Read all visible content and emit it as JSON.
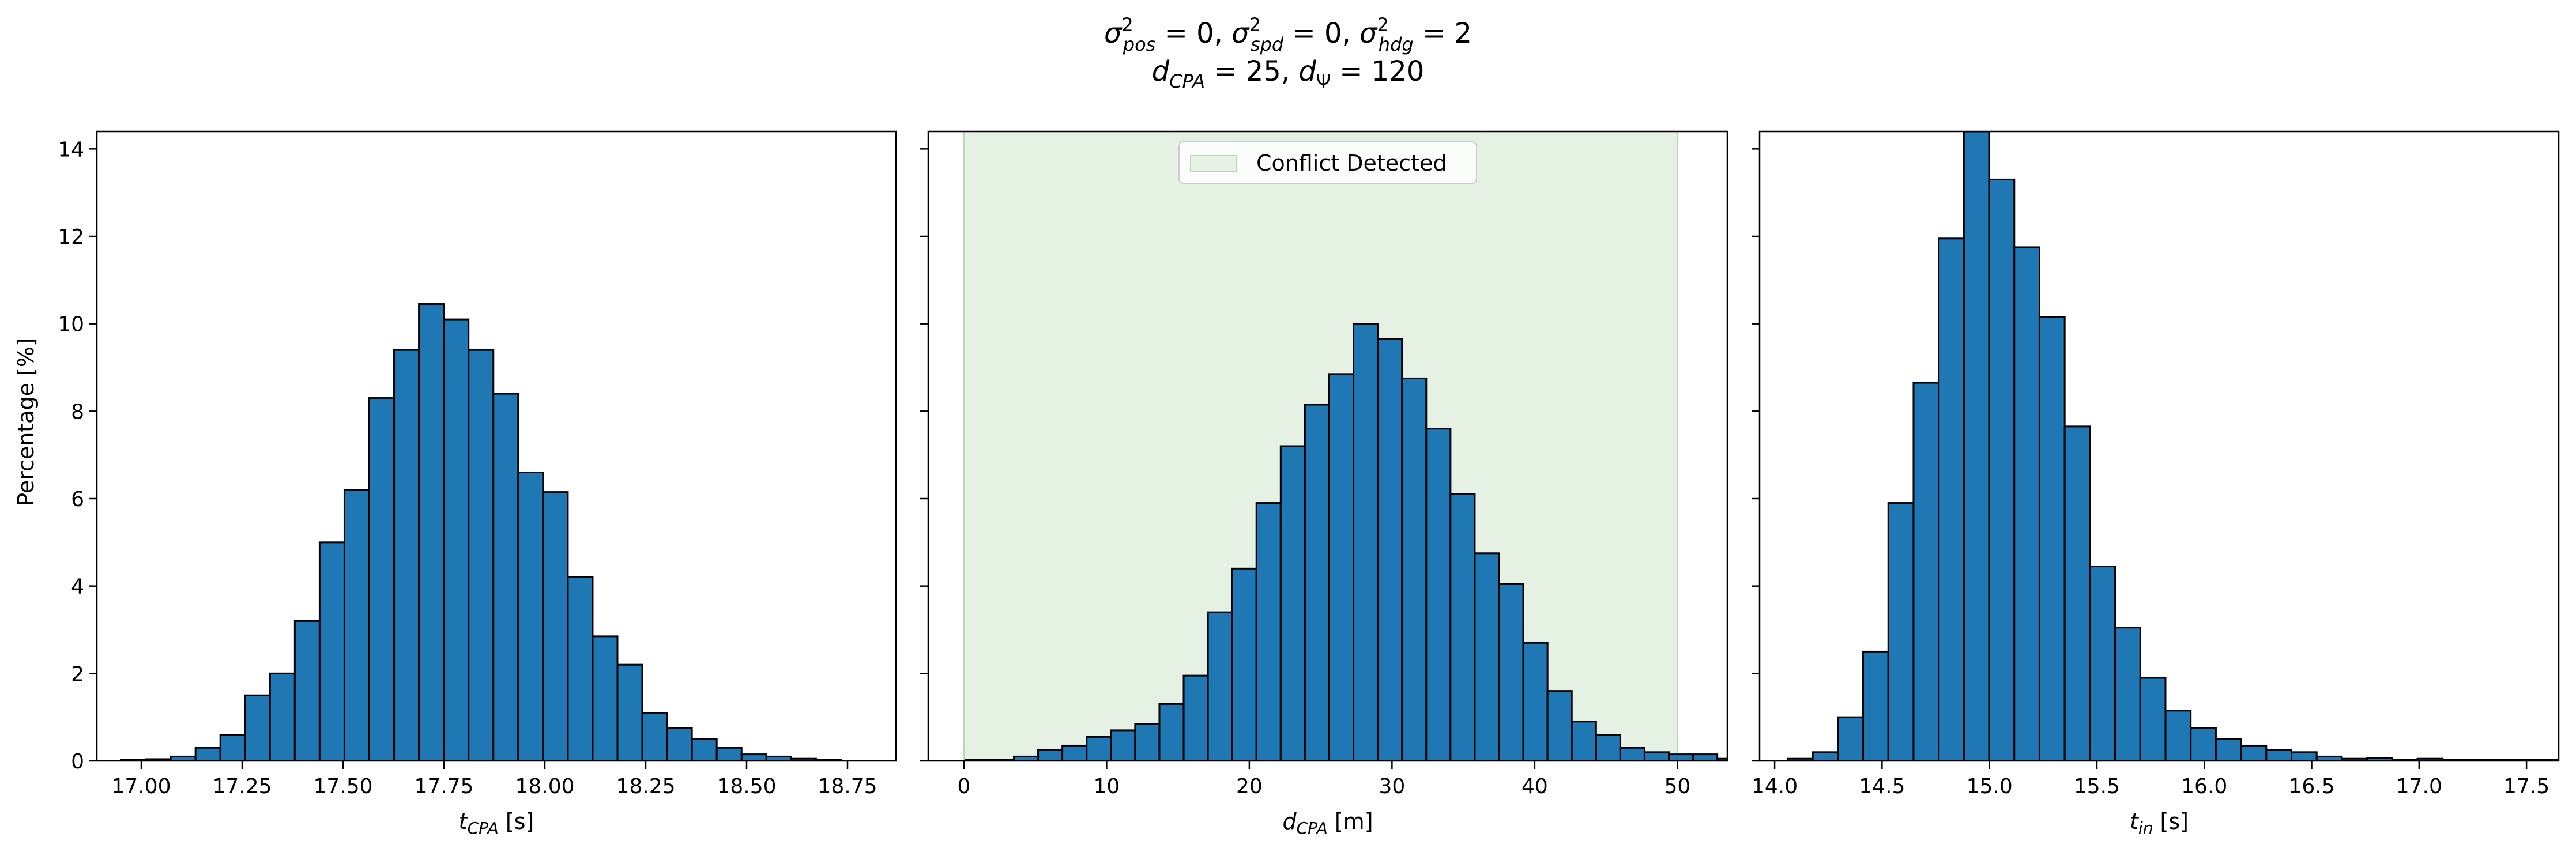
{
  "figure": {
    "title_line1": "σ²pos = 0, σ²spd = 0, σ²hdg = 2",
    "title_line2": "dCPA = 25, dΨ = 120",
    "ylabel": "Percentage [%]",
    "ylim": [
      0,
      14.4
    ],
    "yticks": [
      "0",
      "2",
      "4",
      "6",
      "8",
      "10",
      "12",
      "14"
    ],
    "bar_color": "#1f77b4",
    "edge_color": "#000000",
    "shade_color": "#e5f1e3"
  },
  "chart_data": [
    {
      "type": "bar",
      "xlabel": "tCPA [s]",
      "xlabel_main": "t",
      "xlabel_sub": "CPA",
      "xlabel_unit": " [s]",
      "xlim": [
        16.89,
        18.87
      ],
      "xticks": [
        "17.00",
        "17.25",
        "17.50",
        "17.75",
        "18.00",
        "18.25",
        "18.50",
        "18.75"
      ],
      "bin_start": 16.95,
      "bin_width": 0.0615,
      "values": [
        0.02,
        0.04,
        0.1,
        0.3,
        0.6,
        1.5,
        2.0,
        3.2,
        5.0,
        6.2,
        8.3,
        9.4,
        10.45,
        10.1,
        9.4,
        8.4,
        6.6,
        6.15,
        4.2,
        2.85,
        2.2,
        1.1,
        0.75,
        0.5,
        0.3,
        0.15,
        0.1,
        0.05,
        0.03
      ]
    },
    {
      "type": "bar",
      "xlabel": "dCPA [m]",
      "xlabel_main": "d",
      "xlabel_sub": "CPA",
      "xlabel_unit": " [m]",
      "xlim": [
        -2.5,
        53.5
      ],
      "xticks": [
        "0",
        "10",
        "20",
        "30",
        "40",
        "50"
      ],
      "bin_start": 0.1,
      "bin_width": 1.7,
      "values": [
        0.02,
        0.03,
        0.1,
        0.25,
        0.35,
        0.55,
        0.7,
        0.85,
        1.3,
        1.95,
        3.4,
        4.4,
        5.9,
        7.2,
        8.15,
        8.85,
        10.0,
        9.65,
        8.75,
        7.6,
        6.1,
        4.75,
        4.05,
        2.7,
        1.6,
        0.9,
        0.6,
        0.3,
        0.2,
        0.15,
        0.15,
        0.05
      ],
      "shade": [
        0,
        50
      ],
      "legend": "Conflict Detected"
    },
    {
      "type": "bar",
      "xlabel": "tin [s]",
      "xlabel_main": "t",
      "xlabel_sub": "in",
      "xlabel_unit": " [s]",
      "xlim": [
        13.93,
        17.65
      ],
      "xticks": [
        "14.0",
        "14.5",
        "15.0",
        "15.5",
        "16.0",
        "16.5",
        "17.0",
        "17.5"
      ],
      "bin_start": 14.06,
      "bin_width": 0.1173,
      "values": [
        0.05,
        0.2,
        1.0,
        2.5,
        5.9,
        8.65,
        11.95,
        14.4,
        13.3,
        11.75,
        10.15,
        7.65,
        4.45,
        3.05,
        1.9,
        1.15,
        0.75,
        0.5,
        0.35,
        0.25,
        0.2,
        0.1,
        0.05,
        0.07,
        0.03,
        0.05,
        0.02,
        0.02,
        0.02,
        0.02,
        0.02
      ]
    }
  ]
}
